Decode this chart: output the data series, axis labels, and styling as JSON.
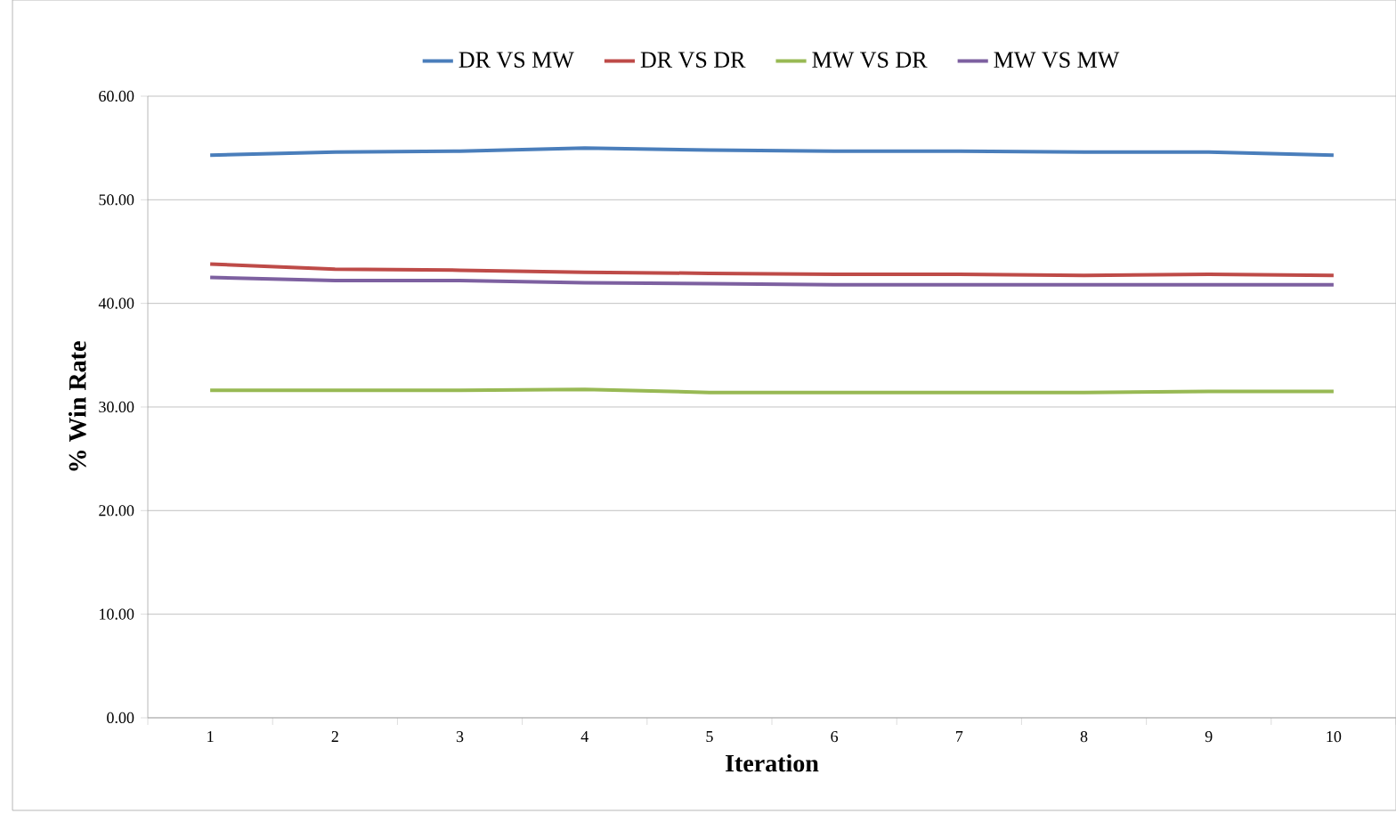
{
  "chart_data": {
    "type": "line",
    "xlabel": "Iteration",
    "ylabel": "% Win Rate",
    "categories": [
      "1",
      "2",
      "3",
      "4",
      "5",
      "6",
      "7",
      "8",
      "9",
      "10"
    ],
    "series": [
      {
        "name": "DR VS MW",
        "color": "#4a7ebb",
        "values": [
          54.3,
          54.6,
          54.7,
          55.0,
          54.8,
          54.7,
          54.7,
          54.6,
          54.6,
          54.3
        ]
      },
      {
        "name": "DR VS DR",
        "color": "#be4b48",
        "values": [
          43.8,
          43.3,
          43.2,
          43.0,
          42.9,
          42.8,
          42.8,
          42.7,
          42.8,
          42.7
        ]
      },
      {
        "name": "MW VS DR",
        "color": "#98b954",
        "values": [
          31.6,
          31.6,
          31.6,
          31.7,
          31.4,
          31.4,
          31.4,
          31.4,
          31.5,
          31.5
        ]
      },
      {
        "name": "MW VS MW",
        "color": "#7d60a0",
        "values": [
          42.5,
          42.2,
          42.2,
          42.0,
          41.9,
          41.8,
          41.8,
          41.8,
          41.8,
          41.8
        ]
      }
    ],
    "ylim": [
      0,
      60
    ],
    "yticks": [
      {
        "value": 0,
        "label": "0.00"
      },
      {
        "value": 10,
        "label": "10.00"
      },
      {
        "value": 20,
        "label": "20.00"
      },
      {
        "value": 30,
        "label": "30.00"
      },
      {
        "value": 40,
        "label": "40.00"
      },
      {
        "value": 50,
        "label": "50.00"
      },
      {
        "value": 60,
        "label": "60.00"
      }
    ],
    "grid": "y",
    "legend": "top",
    "marker": "none",
    "line_style": "solid"
  }
}
